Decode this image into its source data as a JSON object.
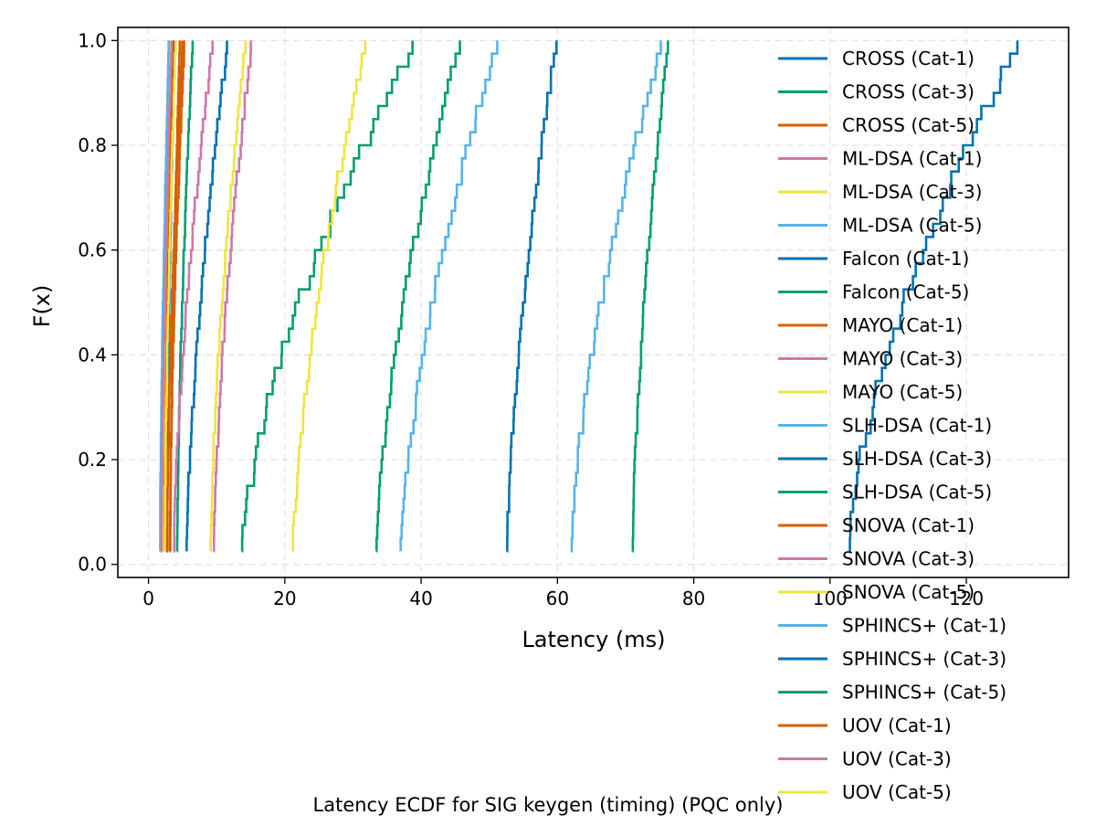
{
  "chart_data": {
    "type": "line",
    "subtype": "ecdf-step",
    "caption": "Latency ECDF for SIG keygen (timing) (PQC only)",
    "xlabel": "Latency (ms)",
    "ylabel": "F(x)",
    "xlim": [
      -4.5,
      135
    ],
    "ylim": [
      -0.025,
      1.025
    ],
    "xticks": [
      0,
      20,
      40,
      60,
      80,
      100,
      120
    ],
    "yticks": [
      0.0,
      0.2,
      0.4,
      0.6,
      0.8,
      1.0
    ],
    "xtick_labels": [
      "0",
      "20",
      "40",
      "60",
      "80",
      "100",
      "120"
    ],
    "ytick_labels": [
      "0.0",
      "0.2",
      "0.4",
      "0.6",
      "0.8",
      "1.0"
    ],
    "grid": true,
    "legend_position": "right",
    "series": [
      {
        "name": "CROSS (Cat-1)",
        "color": "#0072B2",
        "min": 2.6,
        "max": 3.9
      },
      {
        "name": "CROSS (Cat-3)",
        "color": "#009E73",
        "min": 4.2,
        "max": 6.5
      },
      {
        "name": "CROSS (Cat-5)",
        "color": "#D55E00",
        "min": 2.2,
        "max": 3.6
      },
      {
        "name": "ML-DSA (Cat-1)",
        "color": "#CC79A7",
        "min": 1.9,
        "max": 3.0
      },
      {
        "name": "ML-DSA (Cat-3)",
        "color": "#F0E442",
        "min": 2.0,
        "max": 3.3
      },
      {
        "name": "ML-DSA (Cat-5)",
        "color": "#56B4E9",
        "min": 1.7,
        "max": 3.0
      },
      {
        "name": "Falcon (Cat-1)",
        "color": "#0072B2",
        "min": 5.6,
        "max": 11.7
      },
      {
        "name": "Falcon (Cat-5)",
        "color": "#009E73",
        "min": 13.7,
        "max": 39.4
      },
      {
        "name": "MAYO (Cat-1)",
        "color": "#D55E00",
        "min": 2.7,
        "max": 5.0
      },
      {
        "name": "MAYO (Cat-3)",
        "color": "#CC79A7",
        "min": 3.7,
        "max": 9.5
      },
      {
        "name": "MAYO (Cat-5)",
        "color": "#F0E442",
        "min": 9.1,
        "max": 14.3
      },
      {
        "name": "SLH-DSA (Cat-1)",
        "color": "#56B4E9",
        "min": 37.0,
        "max": 51.3
      },
      {
        "name": "SLH-DSA (Cat-3)",
        "color": "#0072B2",
        "min": 52.6,
        "max": 59.9
      },
      {
        "name": "SLH-DSA (Cat-5)",
        "color": "#009E73",
        "min": 33.4,
        "max": 45.7
      },
      {
        "name": "SNOVA (Cat-1)",
        "color": "#D55E00",
        "min": 3.1,
        "max": 5.3
      },
      {
        "name": "SNOVA (Cat-3)",
        "color": "#CC79A7",
        "min": 9.6,
        "max": 15.2
      },
      {
        "name": "SNOVA (Cat-5)",
        "color": "#F0E442",
        "min": 21.2,
        "max": 32.1
      },
      {
        "name": "SPHINCS+ (Cat-1)",
        "color": "#56B4E9",
        "min": 62.0,
        "max": 75.5
      },
      {
        "name": "SPHINCS+ (Cat-3)",
        "color": "#0072B2",
        "min": 102.5,
        "max": 128.0
      },
      {
        "name": "SPHINCS+ (Cat-5)",
        "color": "#009E73",
        "min": 71.0,
        "max": 76.3
      },
      {
        "name": "UOV (Cat-1)",
        "color": "#D55E00",
        "min": 3.2,
        "max": 4.6
      },
      {
        "name": "UOV (Cat-3)",
        "color": "#CC79A7",
        "min": 1.9,
        "max": 3.4
      },
      {
        "name": "UOV (Cat-5)",
        "color": "#F0E442",
        "min": 2.4,
        "max": 4.0
      }
    ]
  }
}
